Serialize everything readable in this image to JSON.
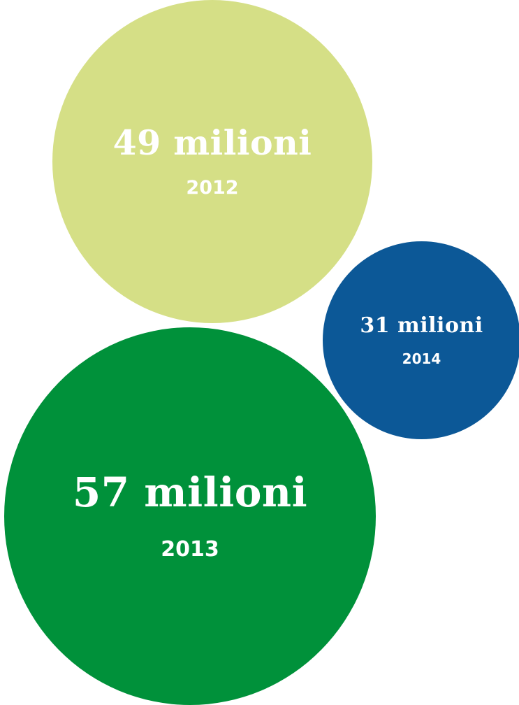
{
  "chart_data": {
    "type": "bubble",
    "title": "",
    "series": [
      {
        "label": "49 milioni",
        "value": 49,
        "unit": "milioni",
        "year": "2012",
        "color": "#D5DF86"
      },
      {
        "label": "57 milioni",
        "value": 57,
        "unit": "milioni",
        "year": "2013",
        "color": "#00913A"
      },
      {
        "label": "31 milioni",
        "value": 31,
        "unit": "milioni",
        "year": "2014",
        "color": "#0C5897"
      }
    ]
  }
}
